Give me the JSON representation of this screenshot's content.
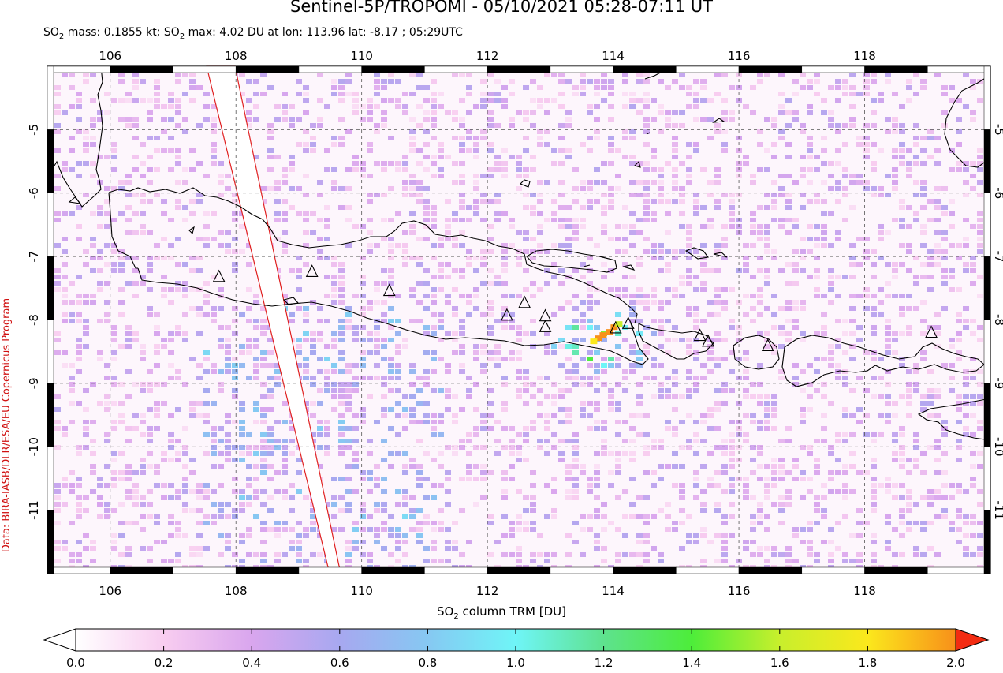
{
  "title": "Sentinel-5P/TROPOMI - 05/10/2021 05:28-07:11 UT",
  "subtitle": {
    "mass_prefix": "SO",
    "mass_sub": "2",
    "mass_rest": " mass: 0.1855 kt; SO",
    "max_sub": "2",
    "max_rest": " max: 4.02 DU at lon: 113.96 lat: -8.17 ; 05:29UTC"
  },
  "credit": "Data: BIRA-IASB/DLR/ESA/EU Copernicus Program",
  "colorbar": {
    "title_prefix": "SO",
    "title_sub": "2",
    "title_rest": " column TRM [DU]",
    "min": 0.0,
    "max": 2.0,
    "ticks": [
      "0.0",
      "0.2",
      "0.4",
      "0.6",
      "0.8",
      "1.0",
      "1.2",
      "1.4",
      "1.6",
      "1.8",
      "2.0"
    ],
    "colors": [
      "#ffffff",
      "#f8cdf0",
      "#d9a6ee",
      "#a7a8f0",
      "#86c8f2",
      "#6ff5f7",
      "#5ee28e",
      "#4ded3a",
      "#c8ef2c",
      "#fbe81c",
      "#f8901a",
      "#f32c12"
    ]
  },
  "map": {
    "lon_range": [
      105.0,
      120.0
    ],
    "lat_range": [
      -12.0,
      -4.0
    ],
    "lon_ticks": [
      "106",
      "108",
      "110",
      "112",
      "114",
      "116",
      "118"
    ],
    "lat_ticks": [
      "-5",
      "-6",
      "-7",
      "-8",
      "-9",
      "-10",
      "-11"
    ],
    "max_location": {
      "lon": 113.96,
      "lat": -8.17
    },
    "volcanoes": [
      {
        "lon": 107.73,
        "lat": -7.32
      },
      {
        "lon": 109.21,
        "lat": -7.24
      },
      {
        "lon": 110.44,
        "lat": -7.54
      },
      {
        "lon": 112.31,
        "lat": -7.93
      },
      {
        "lon": 112.59,
        "lat": -7.73
      },
      {
        "lon": 112.92,
        "lat": -7.94
      },
      {
        "lon": 112.92,
        "lat": -8.11
      },
      {
        "lon": 114.04,
        "lat": -8.13
      },
      {
        "lon": 114.24,
        "lat": -8.06
      },
      {
        "lon": 115.38,
        "lat": -8.25
      },
      {
        "lon": 115.51,
        "lat": -8.34
      },
      {
        "lon": 116.46,
        "lat": -8.41
      },
      {
        "lon": 119.06,
        "lat": -8.2
      }
    ]
  }
}
